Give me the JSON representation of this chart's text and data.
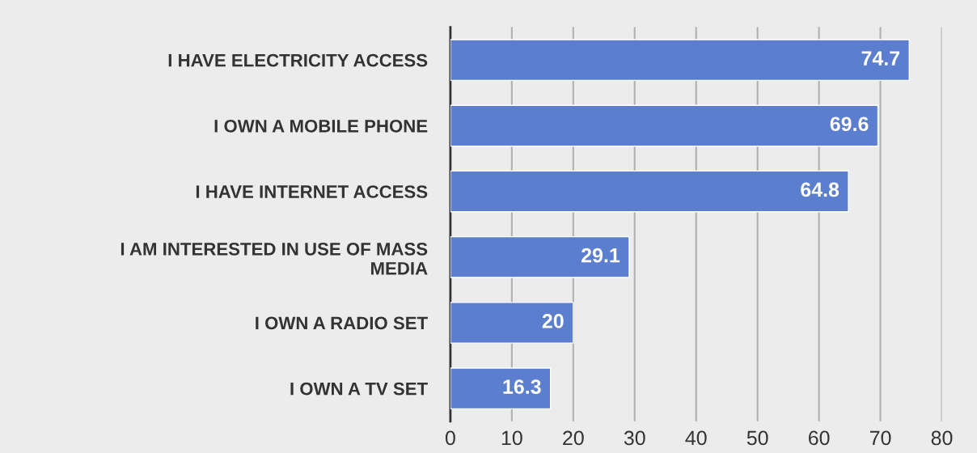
{
  "chart_data": {
    "type": "bar",
    "orientation": "horizontal",
    "categories": [
      "I HAVE ELECTRICITY ACCESS",
      "I OWN A MOBILE PHONE",
      "I HAVE INTERNET ACCESS",
      "I AM INTERESTED IN USE OF MASS\nMEDIA",
      "I OWN A RADIO SET",
      "I OWN A TV SET"
    ],
    "values": [
      74.7,
      69.6,
      64.8,
      29.1,
      20,
      16.3
    ],
    "color": "#5b7fce",
    "xlim": [
      0,
      80
    ],
    "xticks": [
      0,
      10,
      20,
      30,
      40,
      50,
      60,
      70,
      80
    ],
    "grid": "x",
    "data_labels": true
  }
}
